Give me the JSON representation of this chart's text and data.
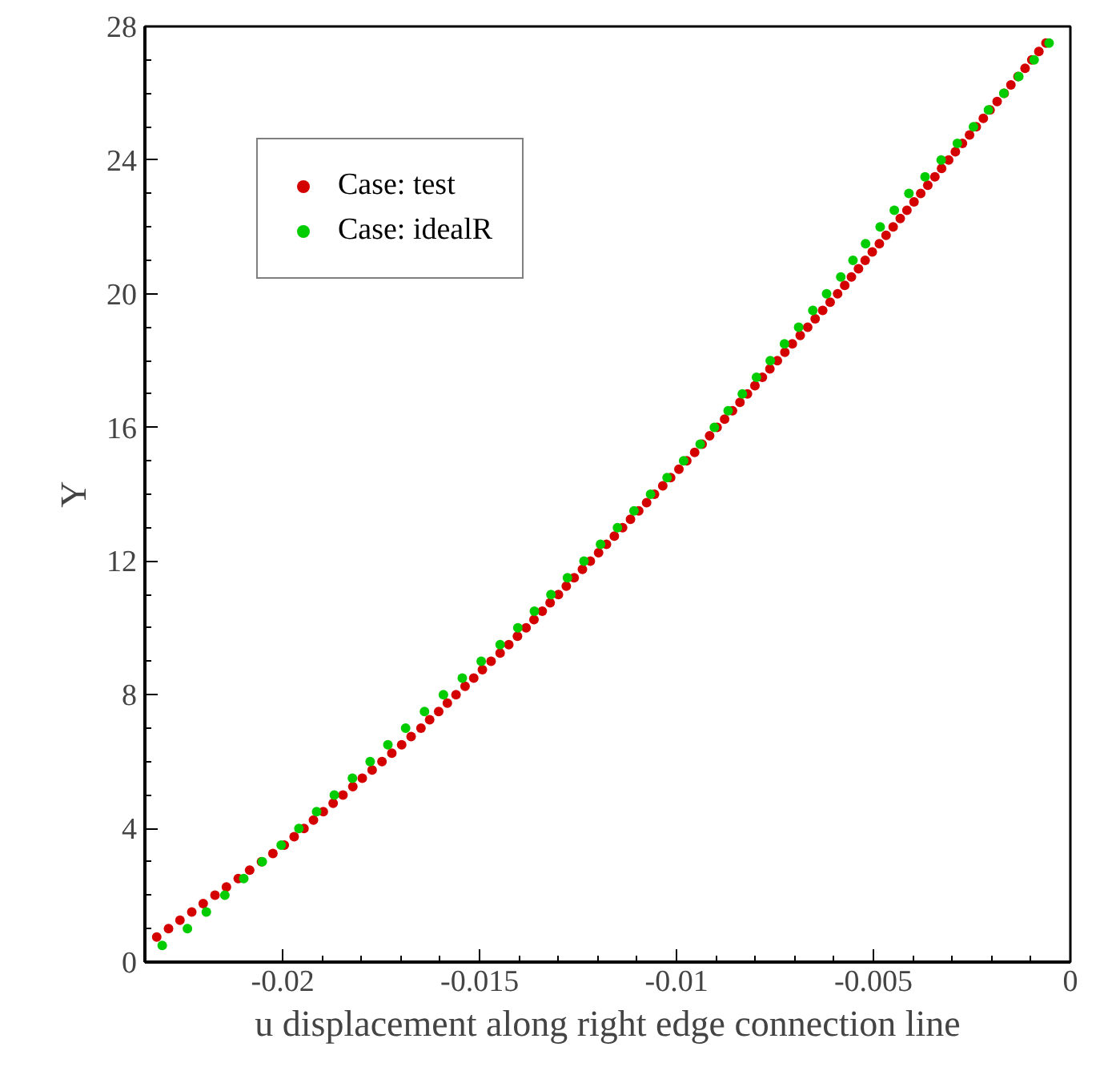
{
  "chart_data": {
    "type": "scatter",
    "xlabel": "u displacement along right edge connection line",
    "ylabel": "Y",
    "xlim": [
      -0.0235,
      0
    ],
    "xticks": [
      -0.02,
      -0.015,
      -0.01,
      -0.005,
      0
    ],
    "ylim": [
      0,
      28
    ],
    "yticks": [
      0,
      4,
      8,
      12,
      16,
      20,
      24,
      28
    ],
    "grid": false,
    "legend": "top left",
    "marker": "circle",
    "series": [
      {
        "name": "Case: test",
        "color": "#d40000",
        "x": [
          -0.0232,
          -0.0229,
          -0.02261,
          -0.02231,
          -0.02202,
          -0.02172,
          -0.02143,
          -0.02113,
          -0.02084,
          -0.02054,
          -0.02025,
          -0.01996,
          -0.01971,
          -0.01946,
          -0.01922,
          -0.01897,
          -0.01872,
          -0.01847,
          -0.01822,
          -0.01798,
          -0.01773,
          -0.01748,
          -0.01723,
          -0.01698,
          -0.01674,
          -0.01649,
          -0.01627,
          -0.01604,
          -0.01582,
          -0.0156,
          -0.01537,
          -0.01515,
          -0.01493,
          -0.01471,
          -0.01448,
          -0.01426,
          -0.01404,
          -0.01382,
          -0.01362,
          -0.01341,
          -0.01321,
          -0.013,
          -0.0128,
          -0.0126,
          -0.01239,
          -0.01219,
          -0.01198,
          -0.01178,
          -0.01158,
          -0.01137,
          -0.01117,
          -0.01096,
          -0.01076,
          -0.01056,
          -0.01035,
          -0.01015,
          -0.00994,
          -0.00974,
          -0.00954,
          -0.00935,
          -0.00916,
          -0.00897,
          -0.00878,
          -0.00858,
          -0.00839,
          -0.0082,
          -0.00801,
          -0.00782,
          -0.00763,
          -0.00744,
          -0.00725,
          -0.00706,
          -0.00686,
          -0.00667,
          -0.00648,
          -0.00629,
          -0.0061,
          -0.00591,
          -0.00573,
          -0.00556,
          -0.00538,
          -0.00521,
          -0.00503,
          -0.00485,
          -0.00468,
          -0.0045,
          -0.00432,
          -0.00415,
          -0.00397,
          -0.0038,
          -0.00362,
          -0.00344,
          -0.00327,
          -0.00309,
          -0.00292,
          -0.00274,
          -0.00256,
          -0.00239,
          -0.00221,
          -0.00204,
          -0.00186,
          -0.00168,
          -0.00151,
          -0.00133,
          -0.00115,
          -0.00098,
          -0.0008,
          -0.00062
        ],
        "values": [
          0.75,
          1,
          1.25,
          1.5,
          1.75,
          2,
          2.25,
          2.5,
          2.75,
          3,
          3.25,
          3.5,
          3.75,
          4,
          4.25,
          4.5,
          4.75,
          5,
          5.25,
          5.5,
          5.75,
          6,
          6.25,
          6.5,
          6.75,
          7,
          7.25,
          7.5,
          7.75,
          8,
          8.25,
          8.5,
          8.75,
          9,
          9.25,
          9.5,
          9.75,
          10,
          10.25,
          10.5,
          10.75,
          11,
          11.25,
          11.5,
          11.75,
          12,
          12.25,
          12.5,
          12.75,
          13,
          13.25,
          13.5,
          13.75,
          14,
          14.25,
          14.5,
          14.75,
          15,
          15.25,
          15.5,
          15.75,
          16,
          16.25,
          16.5,
          16.75,
          17,
          17.25,
          17.5,
          17.75,
          18,
          18.25,
          18.5,
          18.75,
          19,
          19.25,
          19.5,
          19.75,
          20,
          20.25,
          20.5,
          20.75,
          21,
          21.25,
          21.5,
          21.75,
          22,
          22.25,
          22.5,
          22.75,
          23,
          23.25,
          23.5,
          23.75,
          24,
          24.25,
          24.5,
          24.75,
          25,
          25.25,
          25.5,
          25.75,
          26,
          26.25,
          26.5,
          26.75,
          27,
          27.25,
          27.5
        ]
      },
      {
        "name": "Case: idealR",
        "color": "#00cc00",
        "x": [
          -0.02306,
          -0.02242,
          -0.02194,
          -0.02147,
          -0.02099,
          -0.02052,
          -0.02004,
          -0.01959,
          -0.01914,
          -0.01869,
          -0.01823,
          -0.01778,
          -0.01733,
          -0.01688,
          -0.0164,
          -0.01592,
          -0.01544,
          -0.01496,
          -0.01448,
          -0.01403,
          -0.01361,
          -0.01319,
          -0.01277,
          -0.01235,
          -0.01193,
          -0.0115,
          -0.01108,
          -0.01066,
          -0.01024,
          -0.00982,
          -0.0094,
          -0.00904,
          -0.00869,
          -0.00833,
          -0.00797,
          -0.00762,
          -0.00726,
          -0.0069,
          -0.00654,
          -0.00619,
          -0.00583,
          -0.00552,
          -0.0052,
          -0.00483,
          -0.00447,
          -0.0041,
          -0.00369,
          -0.00328,
          -0.00287,
          -0.00246,
          -0.00208,
          -0.00169,
          -0.00131,
          -0.00092,
          -0.00054
        ],
        "values": [
          0.5,
          1,
          1.5,
          2,
          2.5,
          3,
          3.5,
          4,
          4.5,
          5,
          5.5,
          6,
          6.5,
          7,
          7.5,
          8,
          8.5,
          9,
          9.5,
          10,
          10.5,
          11,
          11.5,
          12,
          12.5,
          13,
          13.5,
          14,
          14.5,
          15,
          15.5,
          16,
          16.5,
          17,
          17.5,
          18,
          18.5,
          19,
          19.5,
          20,
          20.5,
          21,
          21.5,
          22,
          22.5,
          23,
          23.5,
          24,
          24.5,
          25,
          25.5,
          26,
          26.5,
          27,
          27.5
        ]
      }
    ]
  }
}
